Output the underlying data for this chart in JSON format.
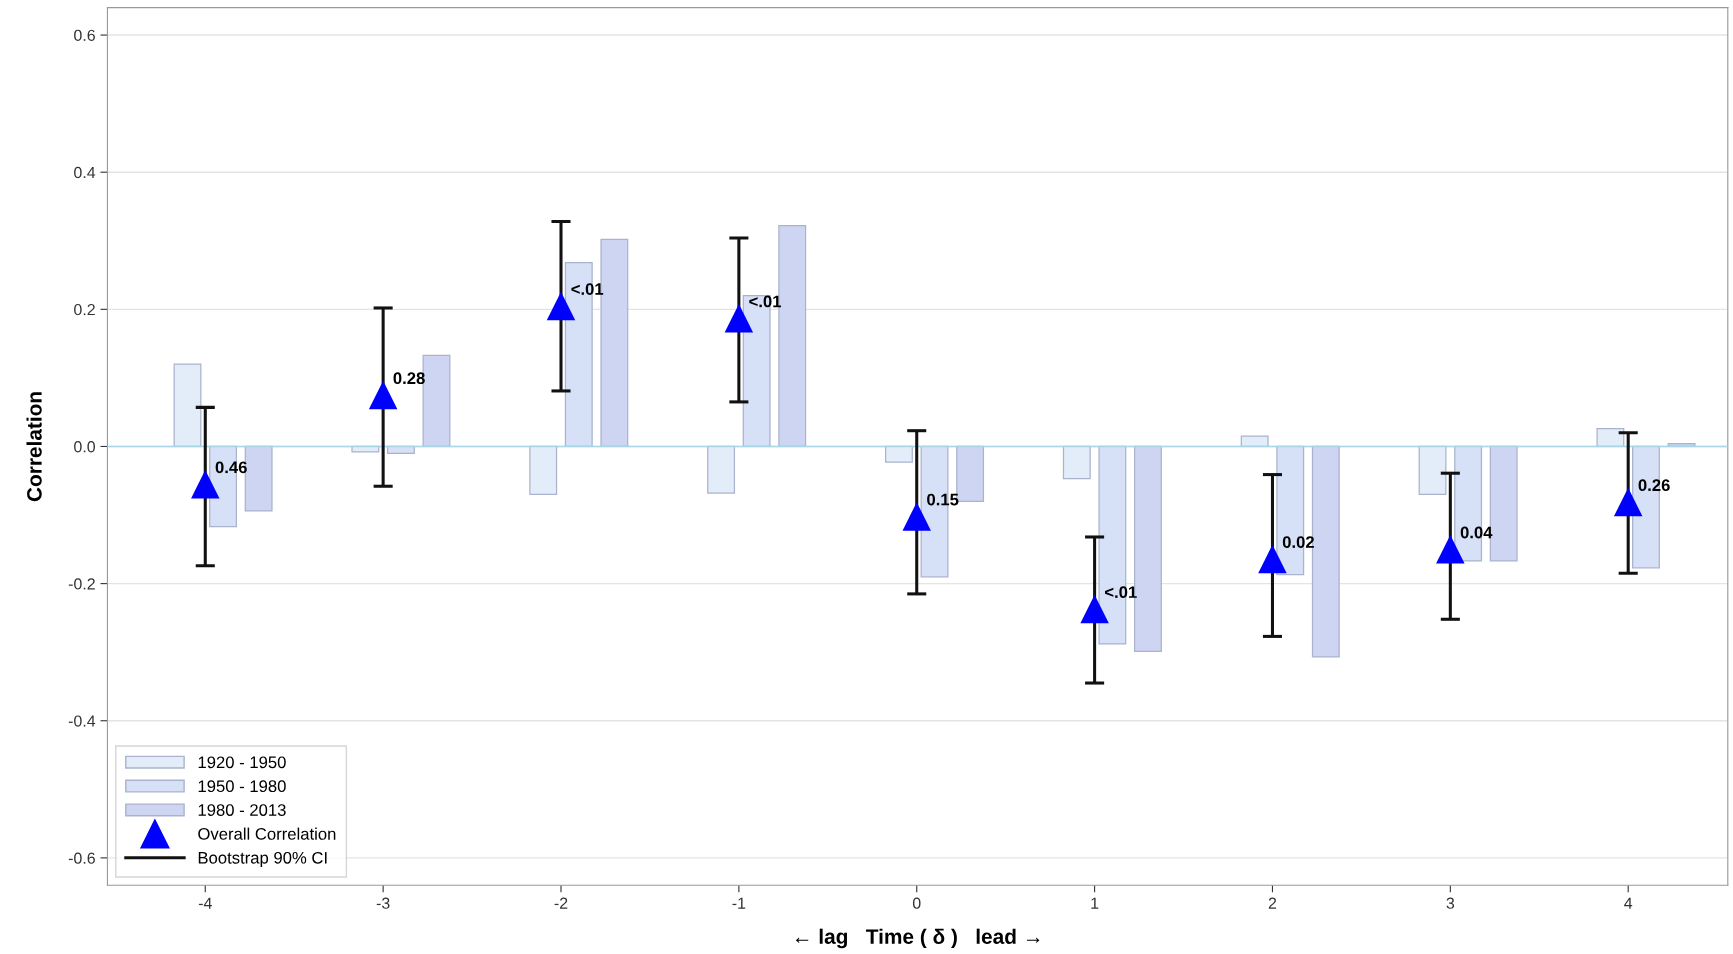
{
  "chart_data": {
    "type": "bar",
    "xlabel": "← lag   Time ( δ )   lead →",
    "ylabel": "Correlation",
    "x": [
      -4,
      -3,
      -2,
      -1,
      0,
      1,
      2,
      3,
      4
    ],
    "xlim": [
      -4.55,
      4.56
    ],
    "xticks": [
      -4,
      -3,
      -2,
      -1,
      0,
      1,
      2,
      3,
      4
    ],
    "ylim": [
      -0.64,
      0.64
    ],
    "yticks": [
      {
        "value": 0.6,
        "label": "0.6"
      },
      {
        "value": 0.4,
        "label": "0.4"
      },
      {
        "value": 0.2,
        "label": "0.2"
      },
      {
        "value": 0,
        "label": "0.0"
      },
      {
        "value": -0.2,
        "label": "-0.2"
      },
      {
        "value": -0.4,
        "label": "-0.4"
      },
      {
        "value": -0.6,
        "label": "-0.6"
      }
    ],
    "grid": "y",
    "legend": "bottom left",
    "ref_lines": [
      {
        "axis": "y",
        "value": 0,
        "label": null,
        "color": "#a8d8e8"
      }
    ],
    "annotations": [
      "Bootstrap 90% CI",
      {
        "text": "0.46",
        "x": -4,
        "y": -0.055
      },
      {
        "text": "0.28",
        "x": -3,
        "y": 0.075
      },
      {
        "text": "<.01",
        "x": -2,
        "y": 0.205
      },
      {
        "text": "<.01",
        "x": -1,
        "y": 0.187
      },
      {
        "text": "0.15",
        "x": 0,
        "y": -0.102
      },
      {
        "text": "<.01",
        "x": 1,
        "y": -0.237
      },
      {
        "text": "0.02",
        "x": 2,
        "y": -0.164
      },
      {
        "text": "0.04",
        "x": 3,
        "y": -0.15
      },
      {
        "text": "0.26",
        "x": 4,
        "y": -0.081
      }
    ],
    "series": [
      {
        "name": "1920 - 1950",
        "color": "#e3ecf9",
        "values": [
          0.12,
          -0.008,
          -0.07,
          -0.068,
          -0.023,
          -0.047,
          0.015,
          -0.07,
          0.026
        ]
      },
      {
        "name": "1950 - 1980",
        "color": "#d6e0f7",
        "values": [
          -0.117,
          -0.01,
          0.268,
          0.22,
          -0.19,
          -0.288,
          -0.187,
          -0.167,
          -0.177
        ]
      },
      {
        "name": "1980 - 2013",
        "color": "#cdd5f2",
        "values": [
          -0.094,
          0.133,
          0.302,
          0.322,
          -0.08,
          -0.299,
          -0.307,
          -0.167,
          0.004
        ]
      },
      {
        "name": "Overall Correlation",
        "type": "scatter",
        "color": "#0000ff",
        "marker": "triangle",
        "values": [
          -0.055,
          0.075,
          0.205,
          0.187,
          -0.102,
          -0.237,
          -0.164,
          -0.15,
          -0.081
        ],
        "errors": [
          [
            -0.174,
            0.057
          ],
          [
            -0.058,
            0.202
          ],
          [
            0.081,
            0.328
          ],
          [
            0.065,
            0.304
          ],
          [
            -0.215,
            0.023
          ],
          [
            -0.345,
            -0.132
          ],
          [
            -0.277,
            -0.041
          ],
          [
            -0.252,
            -0.039
          ],
          [
            -0.185,
            0.02
          ]
        ]
      }
    ]
  }
}
